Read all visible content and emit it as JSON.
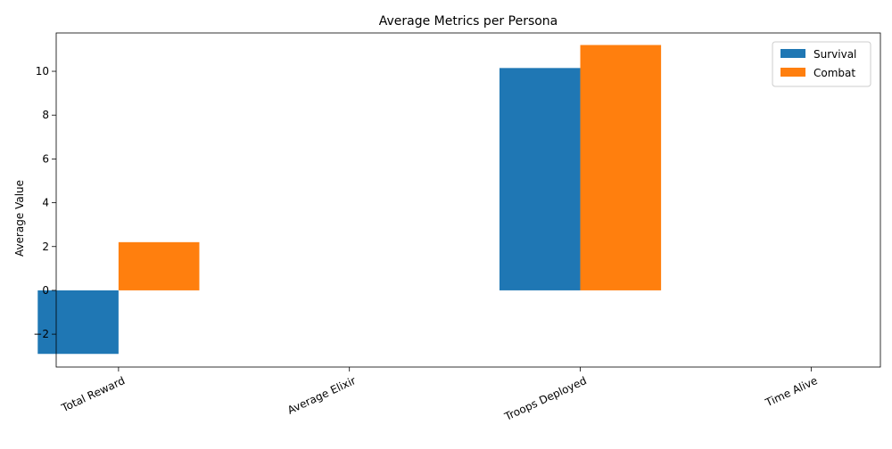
{
  "chart_data": {
    "type": "bar",
    "title": "Average Metrics per Persona",
    "xlabel": "",
    "ylabel": "Average Value",
    "categories": [
      "Total Reward",
      "Average Elixir",
      "Troops Deployed",
      "Time Alive"
    ],
    "series": [
      {
        "name": "Survival",
        "values": [
          -2.9,
          0,
          10.15,
          0
        ],
        "color": "#1f77b4"
      },
      {
        "name": "Combat",
        "values": [
          2.2,
          0,
          11.2,
          0
        ],
        "color": "#ff7f0e"
      }
    ],
    "ylim": [
      -3.5,
      11.75
    ],
    "yticks": [
      -2,
      0,
      2,
      4,
      6,
      8,
      10
    ],
    "ytick_labels": [
      "−2",
      "0",
      "2",
      "4",
      "6",
      "8",
      "10"
    ],
    "xtick_rotation": 25,
    "grid": false,
    "legend_position": "top-right"
  }
}
